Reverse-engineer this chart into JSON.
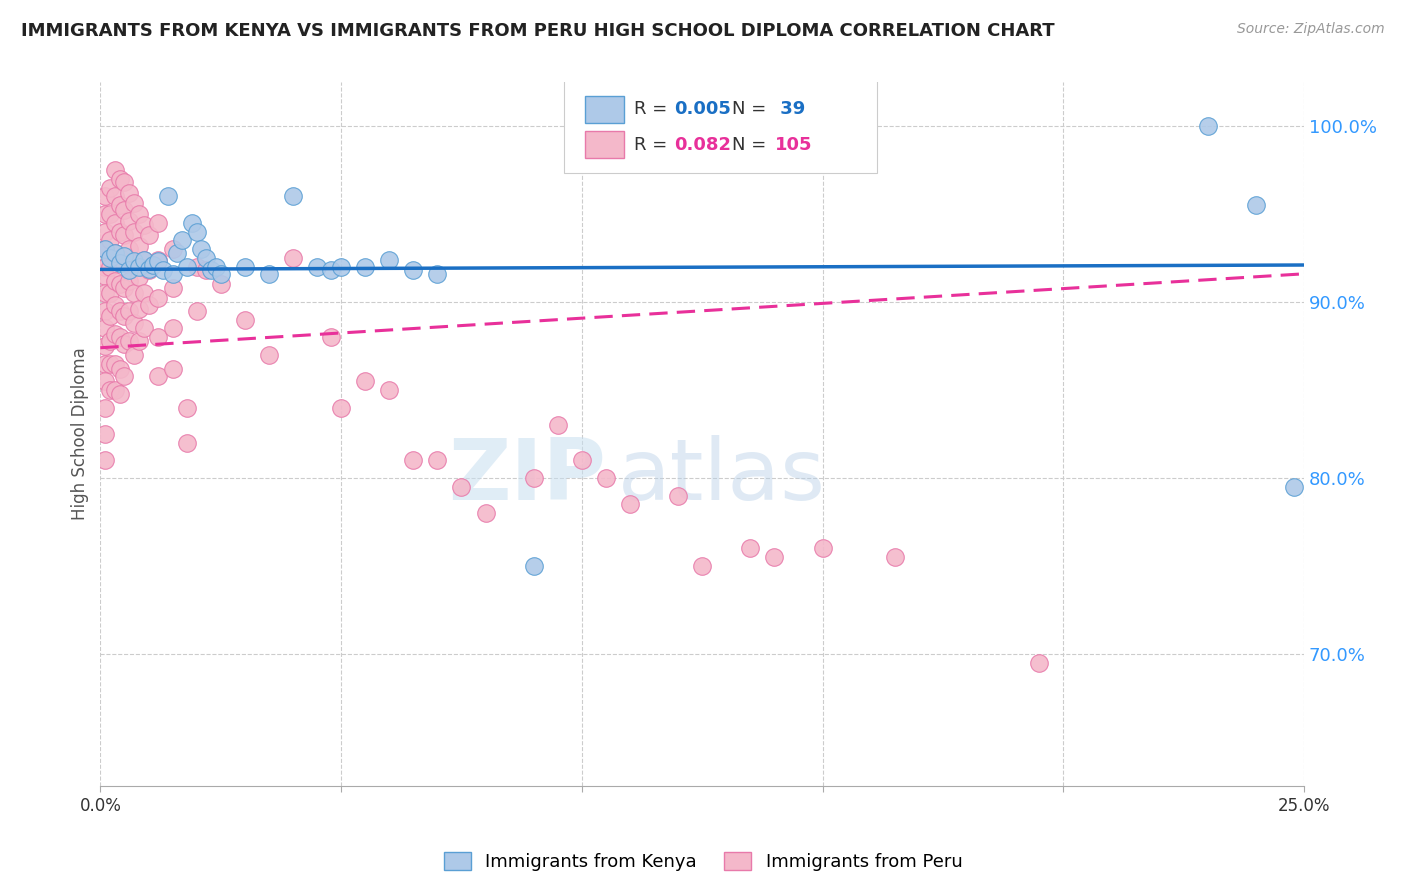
{
  "title": "IMMIGRANTS FROM KENYA VS IMMIGRANTS FROM PERU HIGH SCHOOL DIPLOMA CORRELATION CHART",
  "source": "Source: ZipAtlas.com",
  "ylabel": "High School Diploma",
  "legend_label_kenya": "Immigrants from Kenya",
  "legend_label_peru": "Immigrants from Peru",
  "kenya_color": "#aec9e8",
  "peru_color": "#f4b8ca",
  "kenya_edge": "#5a9fd4",
  "peru_edge": "#e87aaa",
  "kenya_line_color": "#1a6fc4",
  "peru_line_color": "#e8309a",
  "watermark_color": "#c8dff0",
  "ytick_color": "#3399ff",
  "xlim": [
    0.0,
    0.25
  ],
  "ylim": [
    0.625,
    1.025
  ],
  "ytick_vals": [
    0.7,
    0.8,
    0.9,
    1.0
  ],
  "xtick_vals": [
    0.0,
    0.05,
    0.1,
    0.15,
    0.2,
    0.25
  ],
  "kenya_line": [
    [
      0.0,
      0.9185
    ],
    [
      0.25,
      0.921
    ]
  ],
  "peru_line": [
    [
      0.0,
      0.874
    ],
    [
      0.25,
      0.916
    ]
  ],
  "kenya_scatter": [
    [
      0.001,
      0.93
    ],
    [
      0.002,
      0.925
    ],
    [
      0.003,
      0.928
    ],
    [
      0.004,
      0.922
    ],
    [
      0.005,
      0.926
    ],
    [
      0.006,
      0.918
    ],
    [
      0.007,
      0.923
    ],
    [
      0.008,
      0.92
    ],
    [
      0.009,
      0.924
    ],
    [
      0.01,
      0.919
    ],
    [
      0.011,
      0.921
    ],
    [
      0.012,
      0.923
    ],
    [
      0.013,
      0.918
    ],
    [
      0.014,
      0.96
    ],
    [
      0.015,
      0.916
    ],
    [
      0.016,
      0.928
    ],
    [
      0.017,
      0.935
    ],
    [
      0.018,
      0.92
    ],
    [
      0.019,
      0.945
    ],
    [
      0.02,
      0.94
    ],
    [
      0.021,
      0.93
    ],
    [
      0.022,
      0.925
    ],
    [
      0.023,
      0.918
    ],
    [
      0.024,
      0.92
    ],
    [
      0.025,
      0.916
    ],
    [
      0.03,
      0.92
    ],
    [
      0.035,
      0.916
    ],
    [
      0.04,
      0.96
    ],
    [
      0.045,
      0.92
    ],
    [
      0.048,
      0.918
    ],
    [
      0.05,
      0.92
    ],
    [
      0.055,
      0.92
    ],
    [
      0.06,
      0.924
    ],
    [
      0.065,
      0.918
    ],
    [
      0.07,
      0.916
    ],
    [
      0.09,
      0.75
    ],
    [
      0.23,
      1.0
    ],
    [
      0.24,
      0.955
    ],
    [
      0.248,
      0.795
    ]
  ],
  "peru_scatter": [
    [
      0.001,
      0.96
    ],
    [
      0.001,
      0.95
    ],
    [
      0.001,
      0.94
    ],
    [
      0.001,
      0.93
    ],
    [
      0.001,
      0.92
    ],
    [
      0.001,
      0.915
    ],
    [
      0.001,
      0.905
    ],
    [
      0.001,
      0.895
    ],
    [
      0.001,
      0.885
    ],
    [
      0.001,
      0.875
    ],
    [
      0.001,
      0.865
    ],
    [
      0.001,
      0.855
    ],
    [
      0.001,
      0.84
    ],
    [
      0.001,
      0.825
    ],
    [
      0.001,
      0.81
    ],
    [
      0.002,
      0.965
    ],
    [
      0.002,
      0.95
    ],
    [
      0.002,
      0.935
    ],
    [
      0.002,
      0.92
    ],
    [
      0.002,
      0.905
    ],
    [
      0.002,
      0.892
    ],
    [
      0.002,
      0.878
    ],
    [
      0.002,
      0.865
    ],
    [
      0.002,
      0.85
    ],
    [
      0.003,
      0.975
    ],
    [
      0.003,
      0.96
    ],
    [
      0.003,
      0.945
    ],
    [
      0.003,
      0.928
    ],
    [
      0.003,
      0.912
    ],
    [
      0.003,
      0.898
    ],
    [
      0.003,
      0.882
    ],
    [
      0.003,
      0.865
    ],
    [
      0.003,
      0.85
    ],
    [
      0.004,
      0.97
    ],
    [
      0.004,
      0.955
    ],
    [
      0.004,
      0.94
    ],
    [
      0.004,
      0.925
    ],
    [
      0.004,
      0.91
    ],
    [
      0.004,
      0.895
    ],
    [
      0.004,
      0.88
    ],
    [
      0.004,
      0.862
    ],
    [
      0.004,
      0.848
    ],
    [
      0.005,
      0.968
    ],
    [
      0.005,
      0.952
    ],
    [
      0.005,
      0.938
    ],
    [
      0.005,
      0.922
    ],
    [
      0.005,
      0.908
    ],
    [
      0.005,
      0.892
    ],
    [
      0.005,
      0.876
    ],
    [
      0.005,
      0.858
    ],
    [
      0.006,
      0.962
    ],
    [
      0.006,
      0.946
    ],
    [
      0.006,
      0.93
    ],
    [
      0.006,
      0.912
    ],
    [
      0.006,
      0.895
    ],
    [
      0.006,
      0.878
    ],
    [
      0.007,
      0.956
    ],
    [
      0.007,
      0.94
    ],
    [
      0.007,
      0.922
    ],
    [
      0.007,
      0.905
    ],
    [
      0.007,
      0.888
    ],
    [
      0.007,
      0.87
    ],
    [
      0.008,
      0.95
    ],
    [
      0.008,
      0.932
    ],
    [
      0.008,
      0.914
    ],
    [
      0.008,
      0.896
    ],
    [
      0.008,
      0.878
    ],
    [
      0.009,
      0.944
    ],
    [
      0.009,
      0.924
    ],
    [
      0.009,
      0.905
    ],
    [
      0.009,
      0.885
    ],
    [
      0.01,
      0.938
    ],
    [
      0.01,
      0.918
    ],
    [
      0.01,
      0.898
    ],
    [
      0.012,
      0.945
    ],
    [
      0.012,
      0.924
    ],
    [
      0.012,
      0.902
    ],
    [
      0.012,
      0.88
    ],
    [
      0.012,
      0.858
    ],
    [
      0.015,
      0.93
    ],
    [
      0.015,
      0.908
    ],
    [
      0.015,
      0.885
    ],
    [
      0.015,
      0.862
    ],
    [
      0.018,
      0.84
    ],
    [
      0.018,
      0.82
    ],
    [
      0.02,
      0.92
    ],
    [
      0.02,
      0.895
    ],
    [
      0.022,
      0.918
    ],
    [
      0.025,
      0.91
    ],
    [
      0.03,
      0.89
    ],
    [
      0.035,
      0.87
    ],
    [
      0.04,
      0.925
    ],
    [
      0.048,
      0.88
    ],
    [
      0.05,
      0.84
    ],
    [
      0.055,
      0.855
    ],
    [
      0.06,
      0.85
    ],
    [
      0.065,
      0.81
    ],
    [
      0.07,
      0.81
    ],
    [
      0.075,
      0.795
    ],
    [
      0.08,
      0.78
    ],
    [
      0.09,
      0.8
    ],
    [
      0.095,
      0.83
    ],
    [
      0.1,
      0.81
    ],
    [
      0.105,
      0.8
    ],
    [
      0.11,
      0.785
    ],
    [
      0.12,
      0.79
    ],
    [
      0.125,
      0.75
    ],
    [
      0.135,
      0.76
    ],
    [
      0.14,
      0.755
    ],
    [
      0.15,
      0.76
    ],
    [
      0.165,
      0.755
    ],
    [
      0.195,
      0.695
    ]
  ]
}
